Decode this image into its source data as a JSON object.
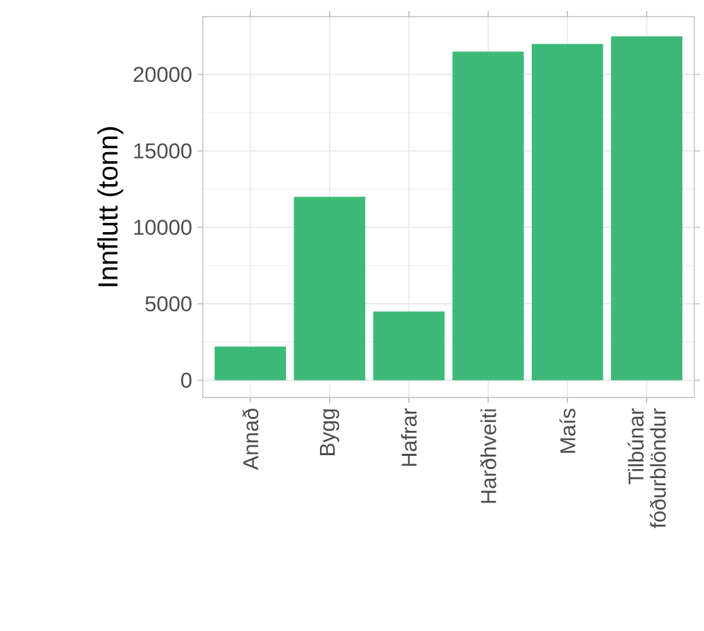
{
  "chart_data": {
    "type": "bar",
    "ylabel": "Innflutt (tonn)",
    "categories": [
      "Annað",
      "Bygg",
      "Hafrar",
      "Harðhveiti",
      "Maís",
      "Tilbúnar fóðurblöndur"
    ],
    "values": [
      2200,
      12000,
      4500,
      21500,
      22000,
      22500
    ],
    "color": "#3dba78",
    "ylim": [
      -1130,
      23780
    ],
    "yticks": [
      0,
      5000,
      10000,
      15000,
      20000
    ],
    "grid": true
  }
}
